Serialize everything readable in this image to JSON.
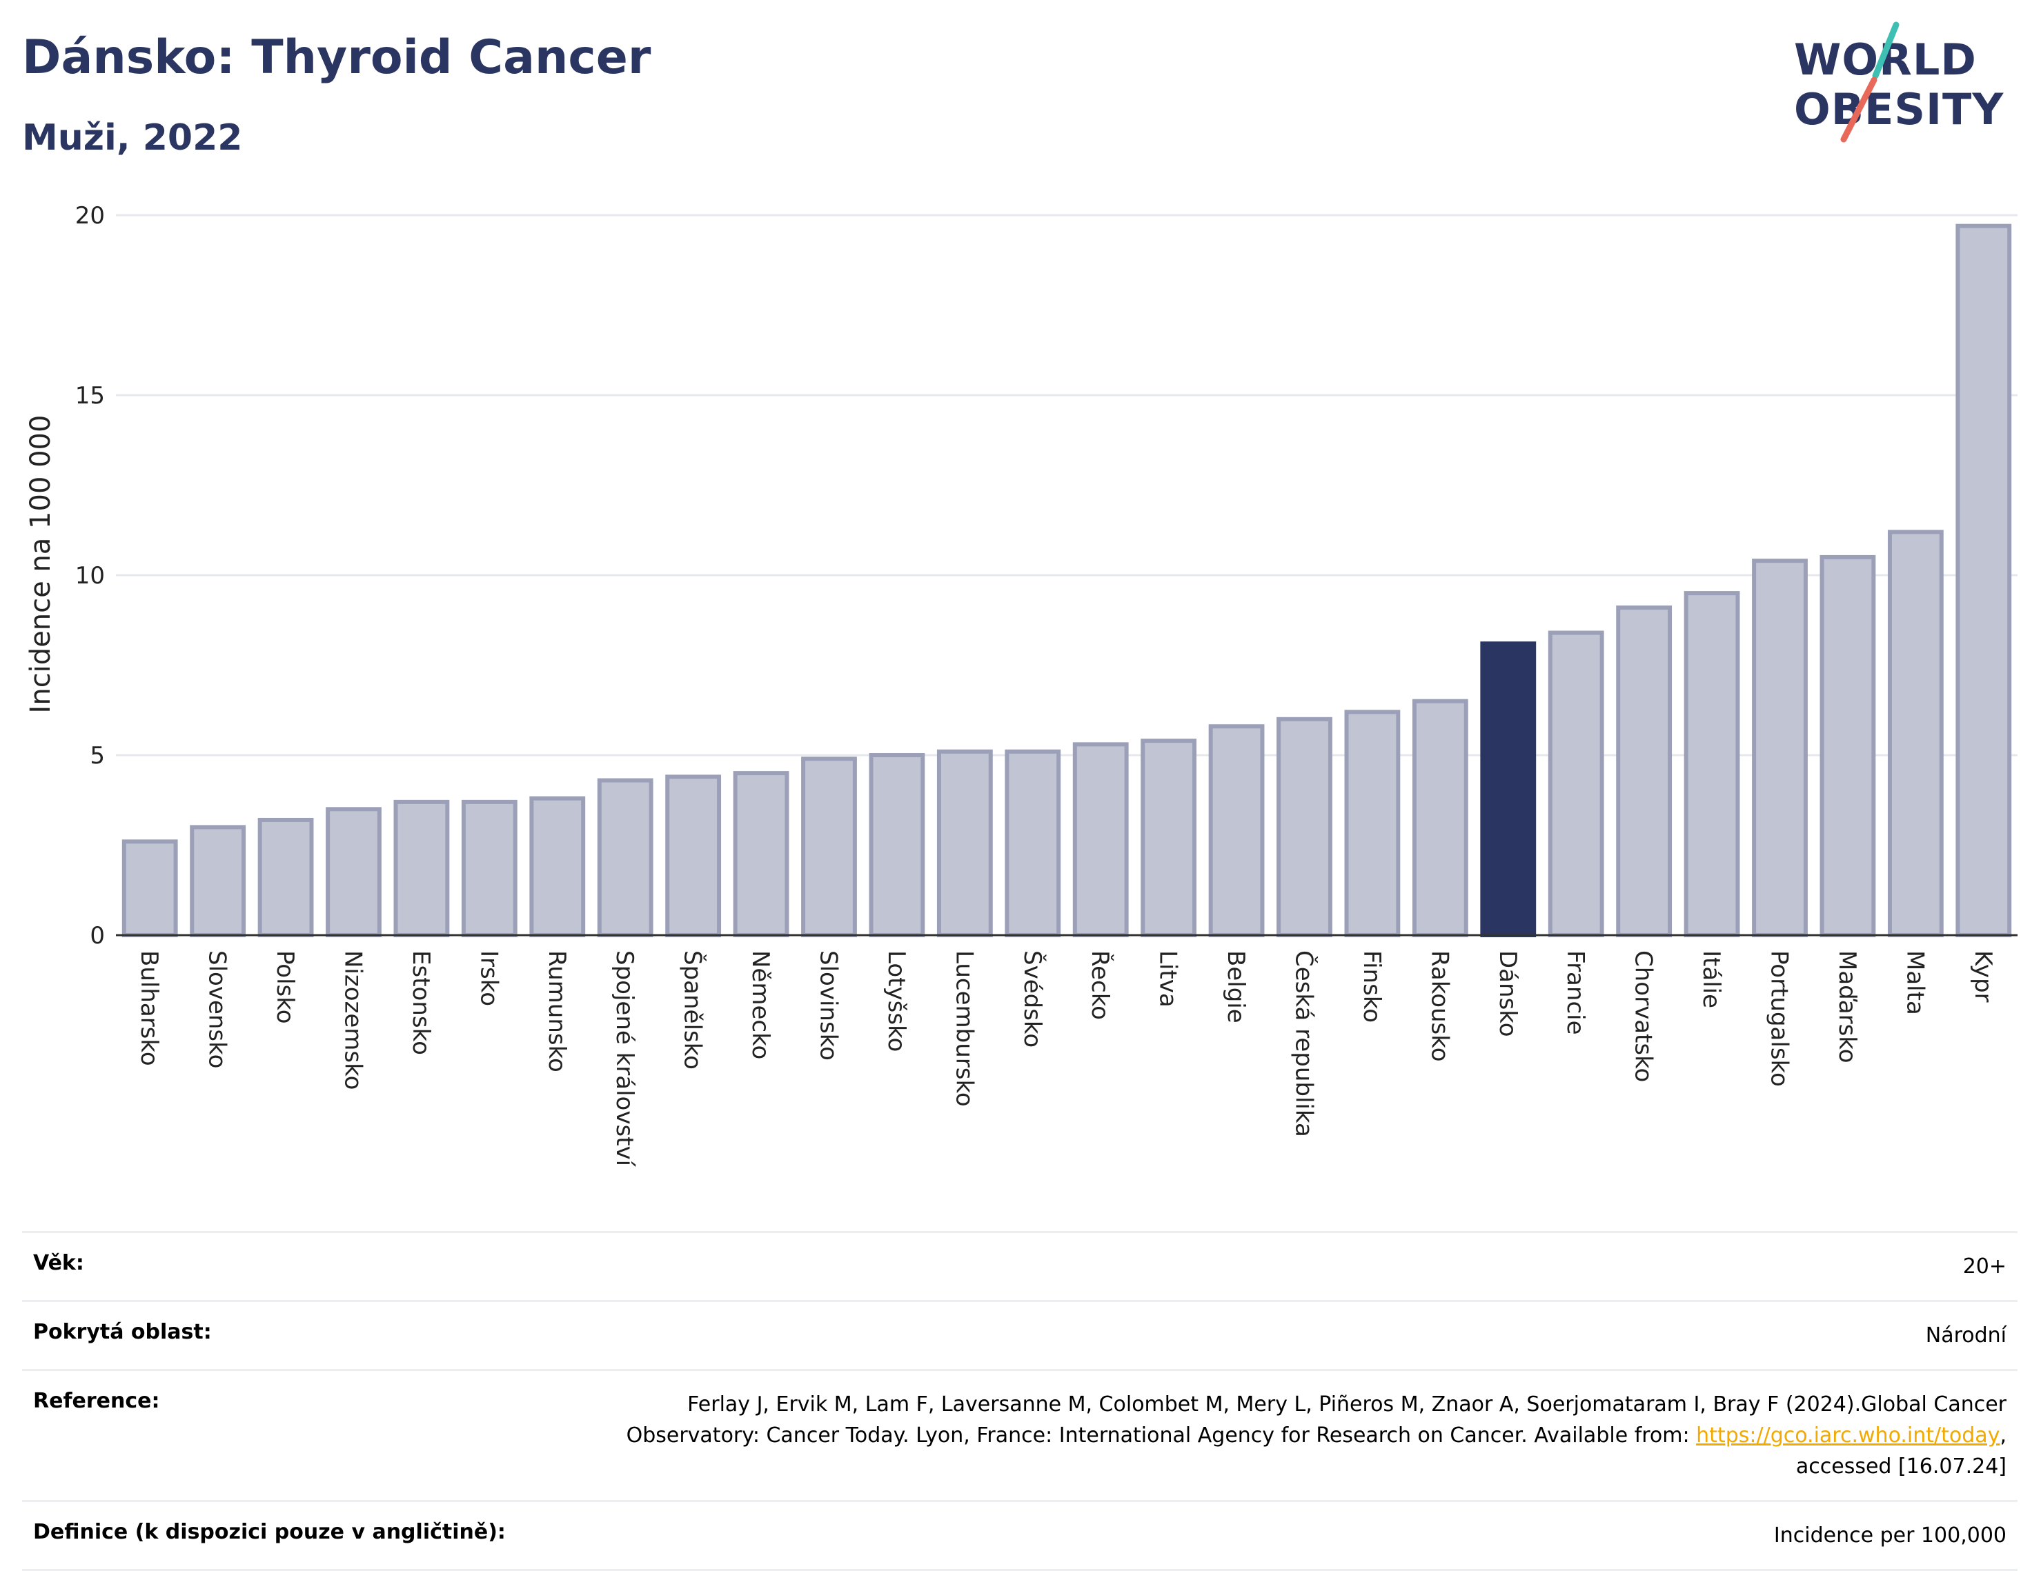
{
  "header": {
    "title": "Dánsko: Thyroid Cancer",
    "subtitle": "Muži, 2022"
  },
  "logo": {
    "line1": "WORLD",
    "line2": "OBESITY",
    "colors": {
      "text": "#2a3561",
      "slash_top": "#3dbfb3",
      "slash_bottom": "#e8685a"
    }
  },
  "chart_data": {
    "type": "bar",
    "ylabel": "Incidence na 100 000",
    "ylim": [
      0,
      20
    ],
    "yticks": [
      0,
      5,
      10,
      15,
      20
    ],
    "grid": true,
    "highlight": "Dánsko",
    "colors": {
      "bar": "#c1c4d2",
      "bar_edge": "#9ba0b8",
      "highlight": "#2a3561",
      "grid": "#e6e8ee"
    },
    "categories": [
      "Bulharsko",
      "Slovensko",
      "Polsko",
      "Nizozemsko",
      "Estonsko",
      "Irsko",
      "Rumunsko",
      "Spojené království",
      "Španělsko",
      "Německo",
      "Slovinsko",
      "Lotyšsko",
      "Lucembursko",
      "Švédsko",
      "Řecko",
      "Litva",
      "Belgie",
      "Česká republika",
      "Finsko",
      "Rakousko",
      "Dánsko",
      "Francie",
      "Chorvatsko",
      "Itálie",
      "Portugalsko",
      "Maďarsko",
      "Malta",
      "Kypr"
    ],
    "values": [
      2.6,
      3.0,
      3.2,
      3.5,
      3.7,
      3.7,
      3.8,
      4.3,
      4.4,
      4.5,
      4.9,
      5.0,
      5.1,
      5.1,
      5.3,
      5.4,
      5.8,
      6.0,
      6.2,
      6.5,
      8.1,
      8.4,
      9.1,
      9.5,
      10.4,
      10.5,
      11.2,
      19.7
    ]
  },
  "info": [
    {
      "key": "Věk:",
      "value": "20+"
    },
    {
      "key": "Pokrytá oblast:",
      "value": "Národní"
    },
    {
      "key": "Reference:",
      "value_line1": "Ferlay J, Ervik M, Lam F, Laversanne M, Colombet M, Mery L, Piñeros M, Znaor A, Soerjomataram I, Bray F (2024).Global Cancer",
      "value_line2_pre": "Observatory: Cancer Today. Lyon, France: International Agency for Research on Cancer. Available from: ",
      "link": "https://gco.iarc.who.int/today",
      "value_line2_post": ",",
      "value_line3": "accessed [16.07.24]"
    },
    {
      "key": "Definice (k dispozici pouze v angličtině):",
      "value": "Incidence per 100,000"
    }
  ]
}
